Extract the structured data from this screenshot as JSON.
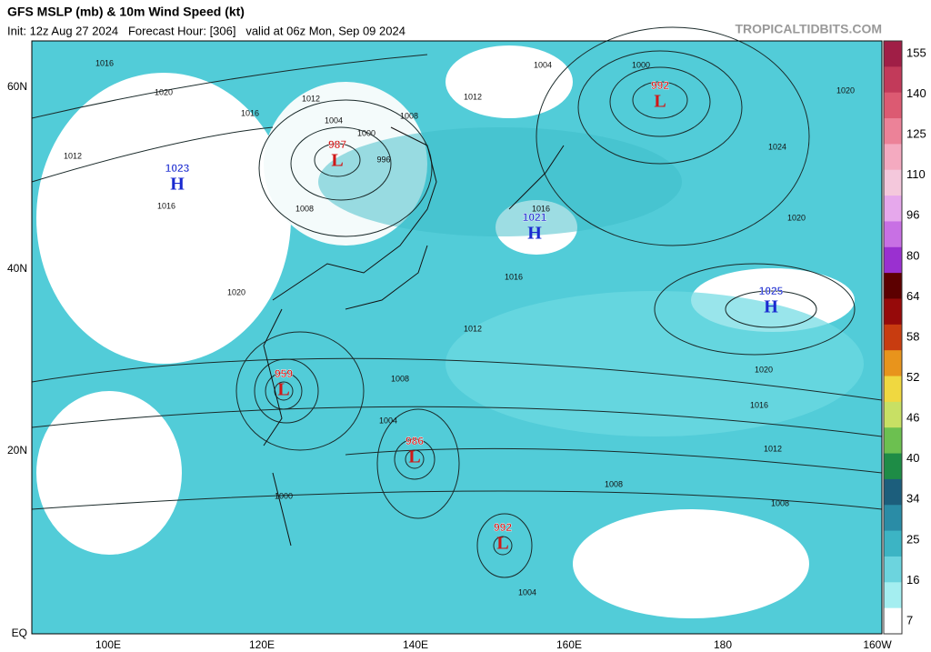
{
  "header": {
    "title": "GFS MSLP (mb) & 10m Wind Speed (kt)",
    "subtitle": "Init: 12z Aug 27 2024   Forecast Hour: [306]   valid at 06z Mon, Sep 09 2024",
    "watermark": "TROPICALTIDBITS.COM"
  },
  "map": {
    "lat_labels": [
      "60N",
      "40N",
      "20N",
      "EQ"
    ],
    "lon_labels": [
      "100E",
      "120E",
      "140E",
      "160E",
      "180",
      "160W"
    ],
    "centers": [
      {
        "type": "L",
        "value": "987"
      },
      {
        "type": "L",
        "value": "992"
      },
      {
        "type": "H",
        "value": "1023"
      },
      {
        "type": "H",
        "value": "1021"
      },
      {
        "type": "H",
        "value": "1025"
      },
      {
        "type": "L",
        "value": "959"
      },
      {
        "type": "L",
        "value": "986"
      },
      {
        "type": "L",
        "value": "992"
      }
    ],
    "isobar_labels": [
      "1016",
      "1020",
      "1012",
      "1016",
      "1008",
      "1012",
      "1004",
      "1000",
      "996",
      "1008",
      "1004",
      "1000",
      "1016",
      "1020",
      "1012",
      "1016",
      "1020",
      "1024",
      "1020",
      "1016",
      "1012",
      "1008",
      "1008",
      "1004",
      "1000",
      "1004",
      "1008",
      "1012",
      "1016",
      "1020"
    ]
  },
  "colorbar": {
    "labels": [
      155,
      140,
      125,
      110,
      96,
      80,
      64,
      58,
      52,
      46,
      40,
      34,
      25,
      16,
      7
    ],
    "colors": [
      "#a01e46",
      "#c23a5a",
      "#dc5a72",
      "#ec8298",
      "#f4aac0",
      "#f4c8dc",
      "#e6a8ec",
      "#c870e4",
      "#9a30d0",
      "#5c0000",
      "#960a0a",
      "#c83c10",
      "#e8941c",
      "#f0d840",
      "#c8e064",
      "#6cc050",
      "#1e8c46",
      "#1c5e7c",
      "#2a8ca6",
      "#3cb4c4",
      "#6cd4de",
      "#a4eef0",
      "#ffffff"
    ]
  }
}
